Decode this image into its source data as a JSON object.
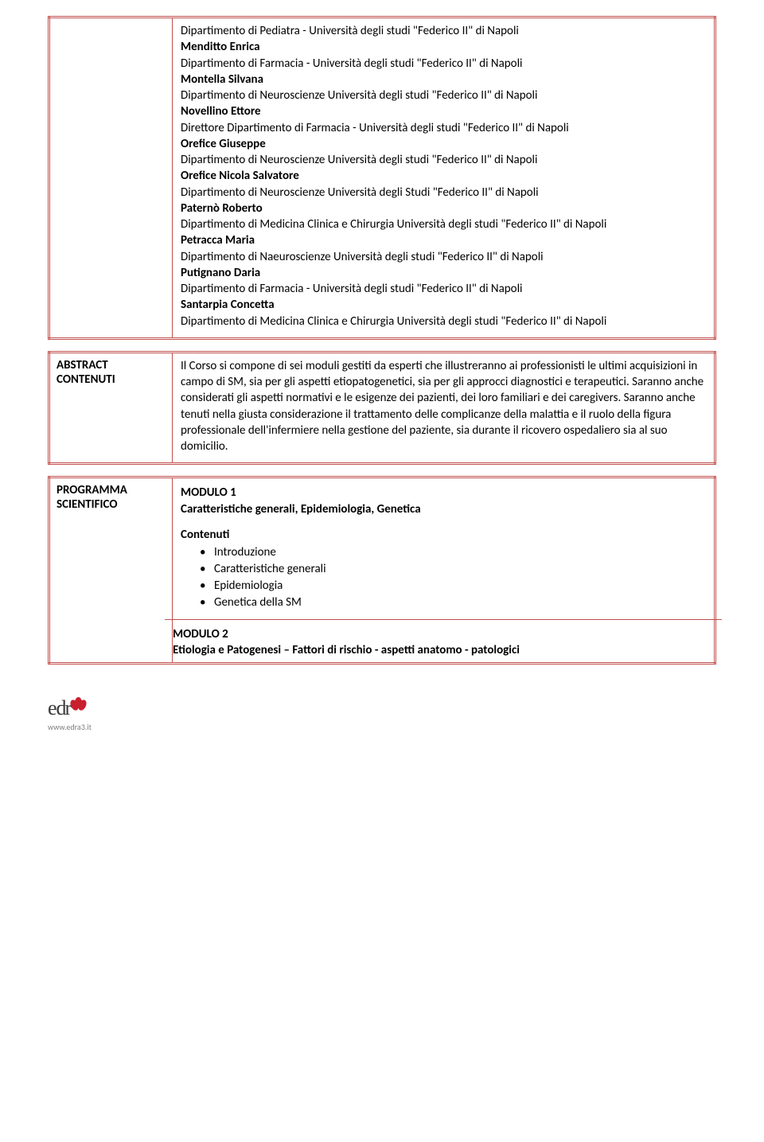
{
  "faculty": [
    {
      "dept": "Dipartimento di Pediatra - Università degli studi \"Federico II\" di Napoli"
    },
    {
      "name": "Menditto Enrica"
    },
    {
      "dept": "Dipartimento di Farmacia - Università degli studi \"Federico II\" di Napoli"
    },
    {
      "name": "Montella Silvana"
    },
    {
      "dept": "Dipartimento di Neuroscienze Università degli studi \"Federico II\" di Napoli"
    },
    {
      "name": "Novellino Ettore"
    },
    {
      "dept": "Direttore Dipartimento di Farmacia - Università degli studi \"Federico II\" di Napoli"
    },
    {
      "name": "Orefice Giuseppe"
    },
    {
      "dept": "Dipartimento di Neuroscienze Università degli studi \"Federico II\" di Napoli"
    },
    {
      "name": "Orefice Nicola Salvatore"
    },
    {
      "dept": "Dipartimento di Neuroscienze Università degli Studi \"Federico II\" di Napoli"
    },
    {
      "name": "Paternò Roberto"
    },
    {
      "dept": "Dipartimento di Medicina Clinica e Chirurgia Università degli studi \"Federico II\" di Napoli"
    },
    {
      "name": "Petracca Maria"
    },
    {
      "dept": "Dipartimento di Naeuroscienze Università degli studi \"Federico II\" di Napoli"
    },
    {
      "name": "Putignano Daria"
    },
    {
      "dept": "Dipartimento di Farmacia - Università degli studi \"Federico II\" di Napoli"
    },
    {
      "name": "Santarpia Concetta"
    },
    {
      "dept": "Dipartimento di Medicina Clinica e Chirurgia Università degli studi \"Federico II\" di Napoli"
    }
  ],
  "abstract": {
    "label1": "ABSTRACT",
    "label2": "CONTENUTI",
    "text": "Il Corso si compone di sei moduli gestiti da esperti che illustreranno ai professionisti le ultimi acquisizioni in campo di SM, sia per gli aspetti etiopatogenetici, sia per gli approcci diagnostici e terapeutici. Saranno anche considerati gli aspetti normativi e le esigenze dei pazienti, dei loro familiari e dei caregivers. Saranno anche tenuti nella giusta considerazione il trattamento delle complicanze della malattia e il ruolo della figura professionale dell'infermiere nella gestione del paziente, sia durante il ricovero ospedaliero sia al suo domicilio."
  },
  "program": {
    "label1": "PROGRAMMA",
    "label2": "SCIENTIFICO",
    "module1": {
      "title": "MODULO 1",
      "subtitle": "Caratteristiche generali, Epidemiologia, Genetica",
      "contents_label": "Contenuti",
      "items": [
        "Introduzione",
        "Caratteristiche generali",
        "Epidemiologia",
        "Genetica della SM"
      ]
    },
    "module2": {
      "title": "MODULO 2",
      "subtitle": "Etiologia e Patogenesi – Fattori di rischio - aspetti anatomo - patologici"
    }
  },
  "footer": {
    "logo_text": "edra",
    "site": "www.edra3.it"
  },
  "colors": {
    "border": "#c0504d",
    "text": "#000000",
    "logo_red": "#c8202f",
    "site_gray": "#808080"
  }
}
